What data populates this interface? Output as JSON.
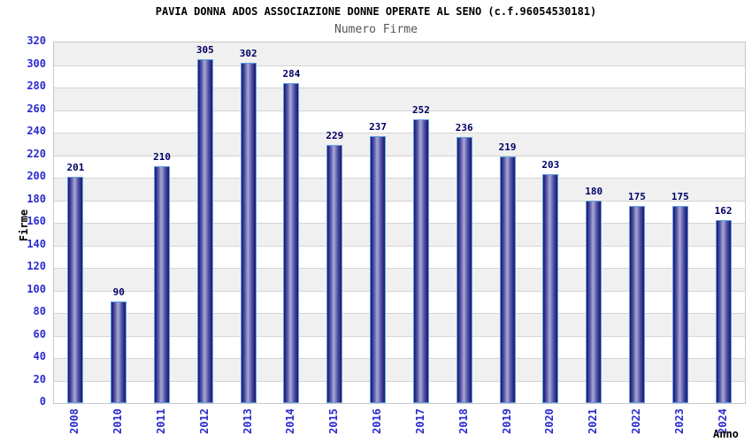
{
  "header": {
    "title": "PAVIA DONNA ADOS ASSOCIAZIONE DONNE OPERATE AL SENO (c.f.96054530181)",
    "subtitle": "Numero Firme"
  },
  "chart_data": {
    "type": "bar",
    "title": "PAVIA DONNA ADOS ASSOCIAZIONE DONNE OPERATE AL SENO (c.f.96054530181)",
    "subtitle": "Numero Firme",
    "categories": [
      "2008",
      "2010",
      "2011",
      "2012",
      "2013",
      "2014",
      "2015",
      "2016",
      "2017",
      "2018",
      "2019",
      "2020",
      "2021",
      "2022",
      "2023",
      "2024"
    ],
    "values": [
      201,
      90,
      210,
      305,
      302,
      284,
      229,
      237,
      252,
      236,
      219,
      203,
      180,
      175,
      175,
      162
    ],
    "xlabel": "Anno",
    "ylabel": "Firme",
    "ylim": [
      0,
      320
    ],
    "ytick_step": 20,
    "grid": true,
    "legend": false,
    "bands_alternating": true,
    "colors": {
      "bar_edge": "#17176f",
      "bar_mid": "#4a4aa0",
      "bar_center": "#a8a8d6",
      "bar_border": "#61a0e2",
      "value_label": "#000066",
      "tick_label": "#2a2ace",
      "band_gray": "#f0f0f0",
      "band_white": "#ffffff",
      "grid_line": "#d4d4d4",
      "plot_border": "#c9c9c9",
      "title_color": "#000000",
      "subtitle_color": "#555555"
    }
  }
}
